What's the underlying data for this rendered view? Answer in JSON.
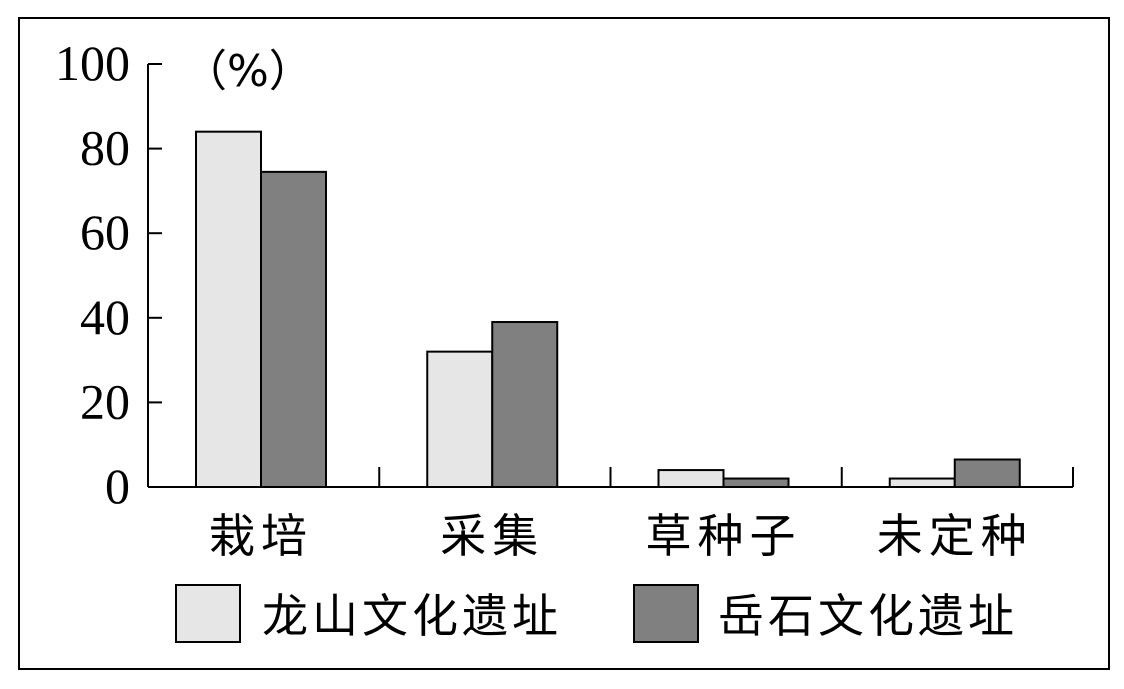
{
  "chart_data": {
    "type": "bar",
    "unit_label": "（%）",
    "categories": [
      "栽培",
      "采集",
      "草种子",
      "未定种"
    ],
    "series": [
      {
        "name": "龙山文化遗址",
        "color": "#e6e6e6",
        "values": [
          84,
          32,
          4,
          2
        ]
      },
      {
        "name": "岳石文化遗址",
        "color": "#808080",
        "values": [
          74.5,
          39,
          2,
          6.5
        ]
      }
    ],
    "ylim": [
      0,
      100
    ],
    "yticks": [
      0,
      20,
      40,
      60,
      80,
      100
    ],
    "legend_position": "bottom",
    "grid": false
  }
}
